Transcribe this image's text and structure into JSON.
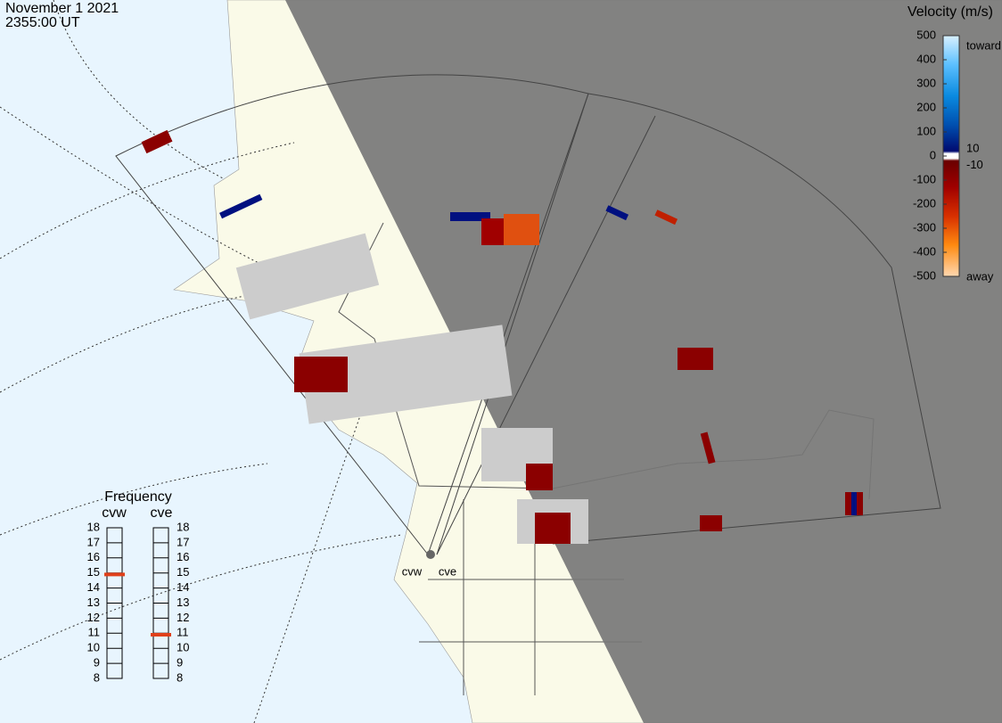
{
  "header": {
    "date": "November 1 2021",
    "time": "2355:00 UT"
  },
  "velocity_legend": {
    "title": "Velocity (m/s)",
    "ticks": [
      500,
      400,
      300,
      200,
      100,
      0,
      -100,
      -200,
      -300,
      -400,
      -500
    ],
    "inner_ticks": [
      10,
      -10
    ],
    "toward": "toward",
    "away": "away"
  },
  "frequency": {
    "title": "Frequency",
    "ticks": [
      18,
      17,
      16,
      15,
      14,
      13,
      12,
      11,
      10,
      9,
      8
    ],
    "radars": [
      {
        "name": "cvw",
        "value": 14.9
      },
      {
        "name": "cve",
        "value": 10.9
      }
    ]
  },
  "sites": [
    "cvw",
    "cve"
  ]
}
